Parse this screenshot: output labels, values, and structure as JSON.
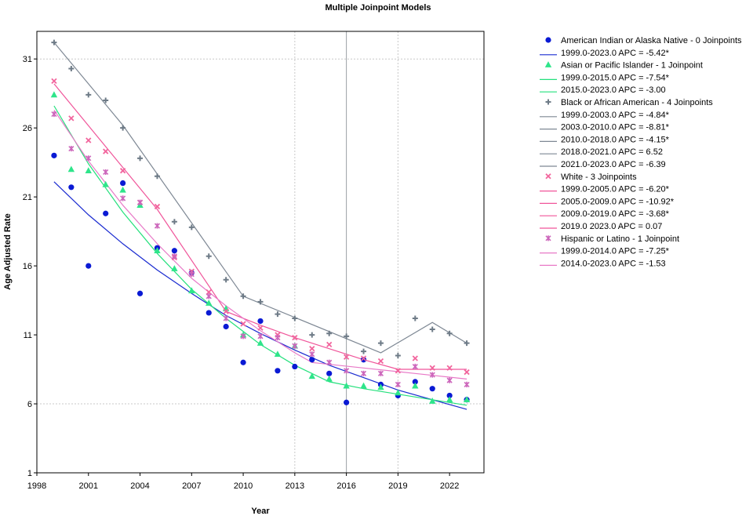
{
  "chart_data": {
    "type": "scatter",
    "title": "Multiple Joinpoint Models",
    "xlabel": "Year",
    "ylabel": "Age Adjusted Rate",
    "xlim": [
      1998,
      2024
    ],
    "ylim": [
      1,
      33
    ],
    "xticks": [
      "1998",
      "2001",
      "2004",
      "2007",
      "2010",
      "2013",
      "2016",
      "2019",
      "2022"
    ],
    "yticks": [
      "1",
      "6",
      "11",
      "16",
      "21",
      "26",
      "31"
    ],
    "grid": "dotted gridlines at x=2013, 2016, 2019 and y=6, 31; solid vertical gridline at x=2016",
    "legend_position": "right",
    "series": [
      {
        "name": "American Indian or Alaska Native - 0 Joinpoints",
        "marker": "circle",
        "color": "#0a1ad4",
        "line_color": "#1a2bd0",
        "x": [
          1999,
          2000,
          2001,
          2002,
          2003,
          2004,
          2005,
          2006,
          2007,
          2008,
          2009,
          2010,
          2011,
          2012,
          2013,
          2014,
          2015,
          2016,
          2017,
          2018,
          2019,
          2020,
          2021,
          2022,
          2023
        ],
        "y": [
          24.0,
          21.7,
          16.0,
          19.8,
          22.0,
          14.0,
          17.3,
          17.1,
          15.5,
          12.6,
          11.6,
          9.0,
          12.0,
          8.4,
          8.7,
          9.2,
          8.2,
          6.1,
          9.2,
          7.4,
          6.6,
          7.6,
          7.1,
          6.6,
          6.3
        ],
        "line_x": [
          1999,
          2001,
          2003,
          2005,
          2007,
          2009,
          2011,
          2013,
          2015,
          2017,
          2019,
          2021,
          2023
        ],
        "line_y": [
          22.1,
          19.7,
          17.6,
          15.7,
          14.0,
          12.4,
          11.1,
          9.9,
          8.8,
          7.9,
          7.0,
          6.3,
          5.6
        ],
        "segments": [
          "1999.0-2023.0 APC  = -5.42*"
        ]
      },
      {
        "name": "Asian or Pacific Islander - 1 Joinpoint",
        "marker": "triangle",
        "color": "#2ee58a",
        "line_color": "#24e07c",
        "x": [
          1999,
          2000,
          2001,
          2002,
          2003,
          2004,
          2005,
          2006,
          2007,
          2008,
          2009,
          2010,
          2011,
          2012,
          2013,
          2014,
          2015,
          2016,
          2017,
          2018,
          2019,
          2020,
          2021,
          2022,
          2023
        ],
        "y": [
          28.4,
          23.0,
          22.9,
          21.9,
          21.5,
          20.4,
          17.1,
          15.8,
          14.2,
          13.3,
          12.9,
          11.0,
          10.4,
          9.6,
          10.2,
          8.0,
          7.8,
          7.3,
          7.3,
          7.2,
          6.8,
          7.3,
          6.2,
          6.3,
          6.3
        ],
        "line_x": [
          1999,
          2001,
          2003,
          2005,
          2007,
          2009,
          2011,
          2013,
          2015,
          2017,
          2019,
          2021,
          2023
        ],
        "line_y": [
          27.6,
          23.4,
          19.9,
          16.9,
          14.3,
          12.2,
          10.3,
          8.8,
          7.6,
          7.1,
          6.7,
          6.3,
          5.9
        ],
        "segments": [
          "1999.0-2015.0 APC  = -7.54*",
          "2015.0-2023.0 APC  = -3.00"
        ]
      },
      {
        "name": "Black or African American - 4 Joinpoints",
        "marker": "plus",
        "color": "#6e7b87",
        "line_color": "#7e8894",
        "x": [
          1999,
          2000,
          2001,
          2002,
          2003,
          2004,
          2005,
          2006,
          2007,
          2008,
          2009,
          2010,
          2011,
          2012,
          2013,
          2014,
          2015,
          2016,
          2017,
          2018,
          2019,
          2020,
          2021,
          2022,
          2023
        ],
        "y": [
          32.2,
          30.3,
          28.4,
          28.0,
          26.0,
          23.8,
          22.5,
          19.2,
          18.8,
          16.7,
          15.0,
          13.8,
          13.4,
          12.5,
          12.2,
          11.0,
          11.1,
          10.9,
          9.8,
          10.4,
          9.5,
          12.2,
          11.4,
          11.1,
          10.4
        ],
        "line_x": [
          1999,
          2003,
          2010,
          2018,
          2021,
          2023
        ],
        "line_y": [
          32.2,
          26.2,
          13.8,
          9.7,
          11.9,
          10.4
        ],
        "segments": [
          "1999.0-2003.0 APC  = -4.84*",
          "2003.0-2010.0 APC  = -8.81*",
          "2010.0-2018.0 APC  = -4.15*",
          "2018.0-2021.0 APC  = 6.52",
          "2021.0-2023.0 APC  = -6.39"
        ]
      },
      {
        "name": "White - 3 Joinpoints",
        "marker": "x",
        "color": "#f2659d",
        "line_color": "#f0559a",
        "x": [
          1999,
          2000,
          2001,
          2002,
          2003,
          2004,
          2005,
          2006,
          2007,
          2008,
          2009,
          2010,
          2011,
          2012,
          2013,
          2014,
          2015,
          2016,
          2017,
          2018,
          2019,
          2020,
          2021,
          2022,
          2023
        ],
        "y": [
          29.4,
          26.7,
          25.1,
          24.3,
          22.9,
          20.6,
          20.3,
          16.6,
          15.6,
          14.1,
          12.7,
          11.8,
          11.5,
          11.0,
          10.8,
          10.0,
          10.3,
          9.4,
          9.3,
          9.1,
          8.4,
          9.3,
          8.6,
          8.6,
          8.3
        ],
        "line_x": [
          1999,
          2005,
          2009,
          2011,
          2013,
          2015,
          2017,
          2019,
          2021,
          2023
        ],
        "line_y": [
          29.2,
          20.1,
          12.7,
          11.7,
          10.8,
          10.0,
          9.2,
          8.5,
          8.5,
          8.5
        ],
        "segments": [
          "1999.0-2005.0 APC  = -6.20*",
          "2005.0-2009.0 APC  = -10.92*",
          "2009.0-2019.0 APC  = -3.68*",
          "2019.0  2023.0 APC  =  0.07"
        ]
      },
      {
        "name": "Hispanic or Latino - 1 Joinpoint",
        "marker": "star",
        "color": "#cc66bb",
        "line_color": "#e879c7",
        "x": [
          1999,
          2000,
          2001,
          2002,
          2003,
          2004,
          2005,
          2006,
          2007,
          2008,
          2009,
          2010,
          2011,
          2012,
          2013,
          2014,
          2015,
          2016,
          2017,
          2018,
          2019,
          2020,
          2021,
          2022,
          2023
        ],
        "y": [
          27.0,
          24.5,
          23.8,
          22.8,
          20.9,
          20.6,
          18.9,
          16.7,
          15.4,
          13.8,
          12.2,
          10.9,
          10.9,
          10.8,
          10.2,
          9.6,
          9.0,
          8.4,
          8.2,
          8.2,
          7.4,
          8.7,
          8.1,
          7.7,
          7.4
        ],
        "line_x": [
          1999,
          2001,
          2003,
          2005,
          2007,
          2009,
          2011,
          2013,
          2014,
          2017,
          2020,
          2023
        ],
        "line_y": [
          27.3,
          23.6,
          20.4,
          17.6,
          15.1,
          13.1,
          11.3,
          9.7,
          9.0,
          8.6,
          8.2,
          7.8
        ],
        "segments": [
          "1999.0-2014.0 APC  = -7.25*",
          "2014.0-2023.0 APC  = -1.53"
        ]
      }
    ]
  }
}
